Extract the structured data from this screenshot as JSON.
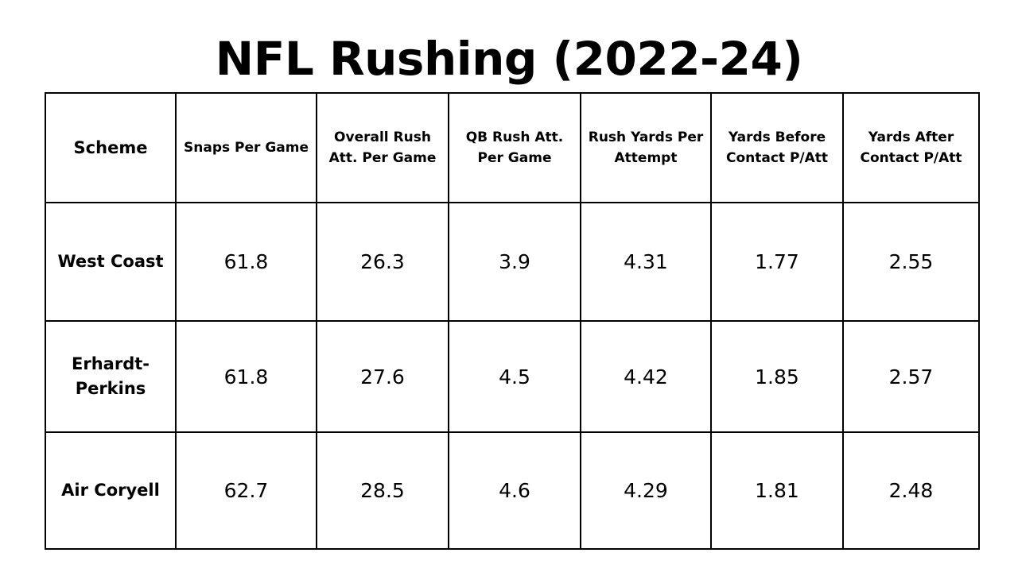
{
  "chart_data": {
    "type": "table",
    "title": "NFL Rushing (2022-24)",
    "columns": [
      "Scheme",
      "Snaps Per Game",
      "Overall Rush Att. Per Game",
      "QB Rush Att. Per Game",
      "Rush Yards Per Attempt",
      "Yards Before Contact P/Att",
      "Yards After Contact P/Att"
    ],
    "rows": [
      {
        "scheme": "West Coast",
        "values": [
          "61.8",
          "26.3",
          "3.9",
          "4.31",
          "1.77",
          "2.55"
        ]
      },
      {
        "scheme": "Erhardt-Perkins",
        "values": [
          "61.8",
          "27.6",
          "4.5",
          "4.42",
          "1.85",
          "2.57"
        ]
      },
      {
        "scheme": "Air Coryell",
        "values": [
          "62.7",
          "28.5",
          "4.6",
          "4.29",
          "1.81",
          "2.48"
        ]
      }
    ]
  }
}
